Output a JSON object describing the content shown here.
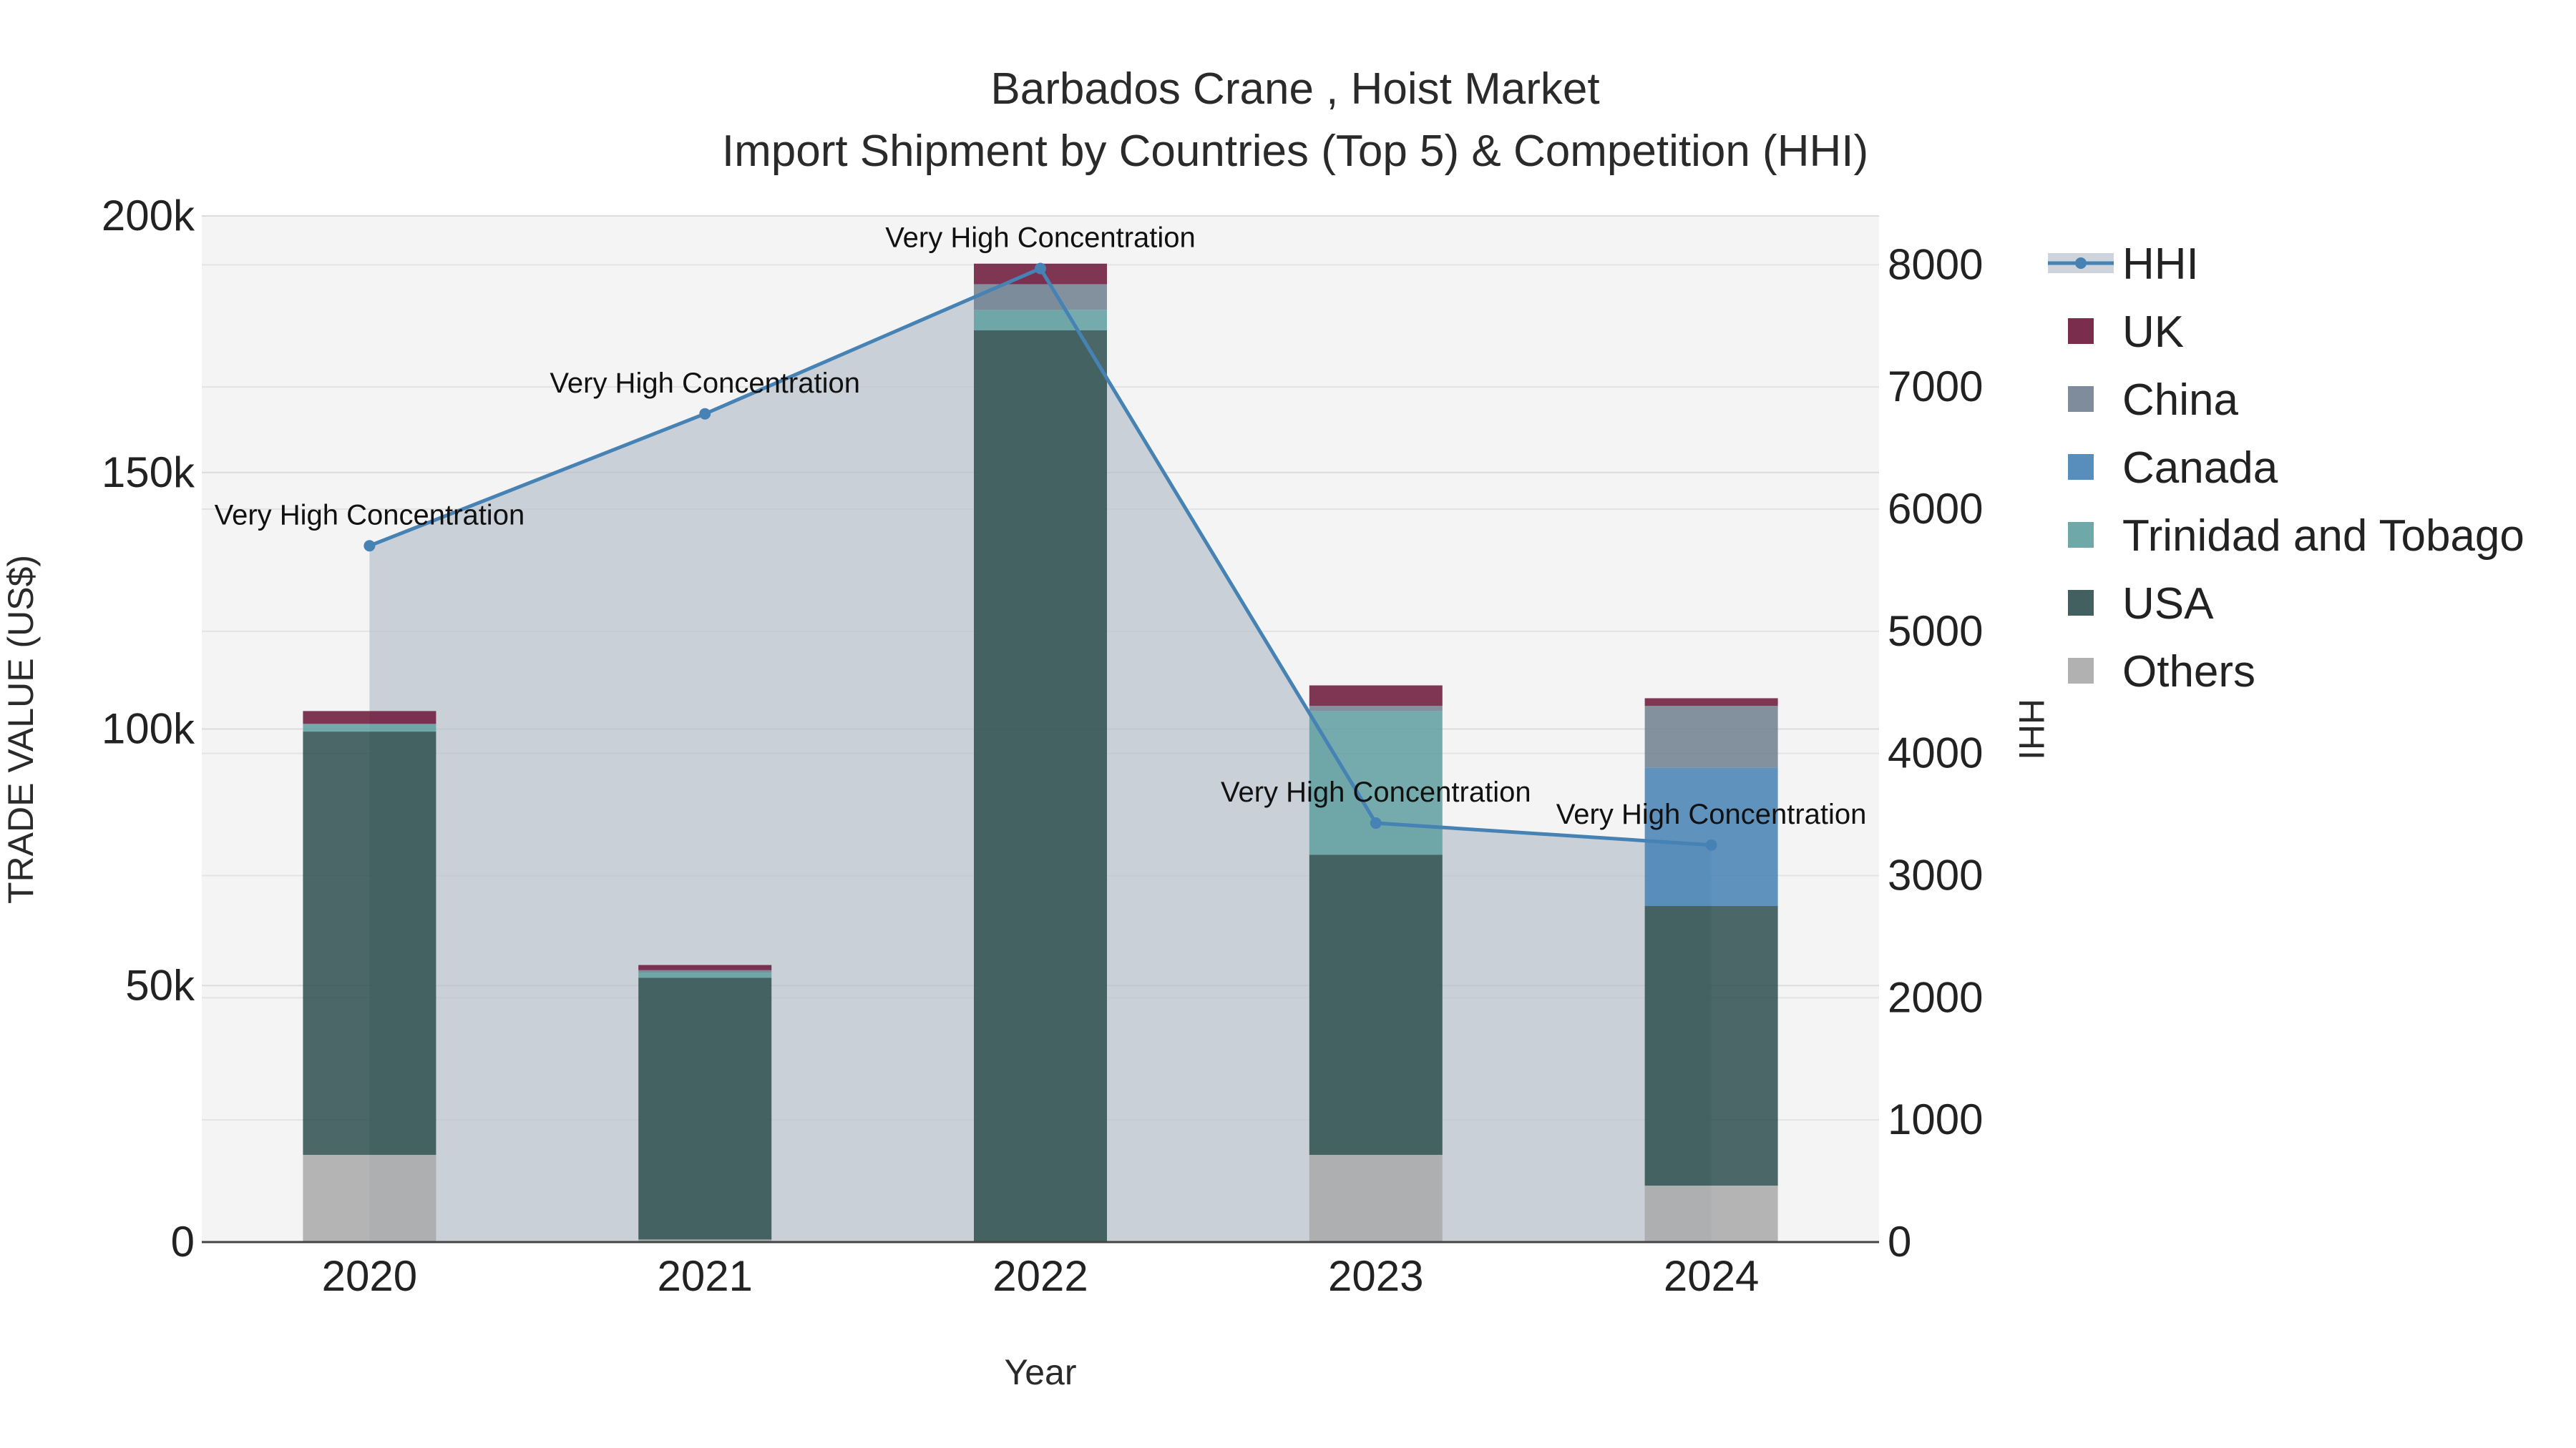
{
  "chart_data": {
    "type": "bar",
    "title": "Barbados Crane , Hoist Market",
    "subtitle": "Import Shipment by Countries (Top 5) & Competition (HHI)",
    "xlabel": "Year",
    "ylabel": "TRADE VALUE (US$)",
    "y2label": "HHI",
    "categories": [
      "2020",
      "2021",
      "2022",
      "2023",
      "2024"
    ],
    "ylim": [
      0,
      200000
    ],
    "y2lim": [
      0,
      8400
    ],
    "yticks": [
      0,
      50000,
      100000,
      150000,
      200000
    ],
    "ytick_labels": [
      "0",
      "50k",
      "100k",
      "150k",
      "200k"
    ],
    "y2ticks": [
      0,
      1000,
      2000,
      3000,
      4000,
      5000,
      6000,
      7000,
      8000
    ],
    "y2tick_labels": [
      "0",
      "1000",
      "2000",
      "3000",
      "4000",
      "5000",
      "6000",
      "7000",
      "8000"
    ],
    "series": [
      {
        "name": "Others",
        "color": "#a9a9a9",
        "values": [
          17000,
          500,
          200,
          17000,
          11000
        ]
      },
      {
        "name": "USA",
        "color": "#2f4f4f",
        "values": [
          82500,
          51000,
          177500,
          58500,
          54500
        ]
      },
      {
        "name": "Trinidad and Tobago",
        "color": "#5f9ea0",
        "values": [
          1500,
          1000,
          4000,
          28000,
          0
        ]
      },
      {
        "name": "Canada",
        "color": "#4682b4",
        "values": [
          0,
          0,
          0,
          0,
          27000
        ]
      },
      {
        "name": "China",
        "color": "#708090",
        "values": [
          0,
          500,
          5000,
          1000,
          12000
        ]
      },
      {
        "name": "UK",
        "color": "#6b1638",
        "values": [
          2500,
          1000,
          4000,
          4000,
          1500
        ]
      }
    ],
    "hhi": {
      "name": "HHI",
      "color": "#4682b4",
      "values": [
        5700,
        6780,
        7970,
        3430,
        3250
      ],
      "annotations": [
        "Very High Concentration",
        "Very High Concentration",
        "Very High Concentration",
        "Very High Concentration",
        "Very High Concentration"
      ]
    },
    "legend": [
      "HHI",
      "UK",
      "China",
      "Canada",
      "Trinidad and Tobago",
      "USA",
      "Others"
    ],
    "legend_position": "top-right"
  }
}
